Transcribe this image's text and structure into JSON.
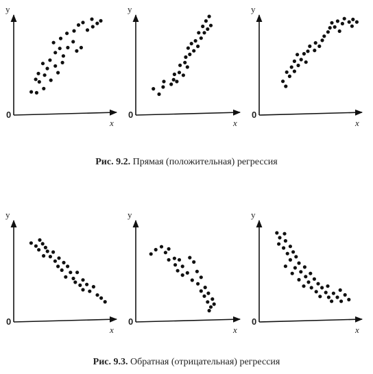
{
  "captions": {
    "top": {
      "prefix": "Рис. 9.2.",
      "text": "Прямая (положительная) регрессия"
    },
    "bottom": {
      "prefix": "Рис. 9.3.",
      "text": "Обратная (отрицательная) регрессия"
    }
  },
  "panels": [
    {
      "id": "pos-1",
      "y_label": "y",
      "x_label": "x",
      "origin_label": "0",
      "points": [
        [
          0.12,
          0.13
        ],
        [
          0.18,
          0.12
        ],
        [
          0.26,
          0.17
        ],
        [
          0.21,
          0.25
        ],
        [
          0.17,
          0.28
        ],
        [
          0.2,
          0.35
        ],
        [
          0.27,
          0.33
        ],
        [
          0.34,
          0.27
        ],
        [
          0.3,
          0.41
        ],
        [
          0.25,
          0.47
        ],
        [
          0.33,
          0.51
        ],
        [
          0.39,
          0.44
        ],
        [
          0.42,
          0.36
        ],
        [
          0.47,
          0.48
        ],
        [
          0.39,
          0.6
        ],
        [
          0.44,
          0.65
        ],
        [
          0.48,
          0.56
        ],
        [
          0.53,
          0.66
        ],
        [
          0.37,
          0.72
        ],
        [
          0.45,
          0.77
        ],
        [
          0.52,
          0.83
        ],
        [
          0.59,
          0.73
        ],
        [
          0.63,
          0.62
        ],
        [
          0.68,
          0.66
        ],
        [
          0.6,
          0.86
        ],
        [
          0.65,
          0.93
        ],
        [
          0.7,
          0.96
        ],
        [
          0.75,
          0.87
        ],
        [
          0.81,
          0.91
        ],
        [
          0.8,
          1.0
        ],
        [
          0.86,
          0.95
        ],
        [
          0.9,
          0.98
        ]
      ]
    },
    {
      "id": "pos-2",
      "y_label": "y",
      "x_label": "x",
      "origin_label": "0",
      "points": [
        [
          0.15,
          0.2
        ],
        [
          0.22,
          0.14
        ],
        [
          0.27,
          0.22
        ],
        [
          0.28,
          0.28
        ],
        [
          0.37,
          0.25
        ],
        [
          0.4,
          0.3
        ],
        [
          0.44,
          0.28
        ],
        [
          0.41,
          0.36
        ],
        [
          0.47,
          0.38
        ],
        [
          0.52,
          0.35
        ],
        [
          0.48,
          0.46
        ],
        [
          0.54,
          0.49
        ],
        [
          0.57,
          0.44
        ],
        [
          0.55,
          0.55
        ],
        [
          0.6,
          0.58
        ],
        [
          0.58,
          0.65
        ],
        [
          0.65,
          0.62
        ],
        [
          0.62,
          0.7
        ],
        [
          0.67,
          0.73
        ],
        [
          0.7,
          0.67
        ],
        [
          0.74,
          0.76
        ],
        [
          0.71,
          0.82
        ],
        [
          0.78,
          0.82
        ],
        [
          0.76,
          0.89
        ],
        [
          0.82,
          0.86
        ],
        [
          0.8,
          0.95
        ],
        [
          0.86,
          0.9
        ],
        [
          0.84,
          1.0
        ]
      ]
    },
    {
      "id": "pos-3",
      "y_label": "y",
      "x_label": "x",
      "origin_label": "0",
      "points": [
        [
          0.22,
          0.18
        ],
        [
          0.19,
          0.24
        ],
        [
          0.26,
          0.3
        ],
        [
          0.23,
          0.35
        ],
        [
          0.31,
          0.36
        ],
        [
          0.28,
          0.41
        ],
        [
          0.35,
          0.43
        ],
        [
          0.31,
          0.48
        ],
        [
          0.38,
          0.5
        ],
        [
          0.43,
          0.47
        ],
        [
          0.34,
          0.56
        ],
        [
          0.41,
          0.57
        ],
        [
          0.45,
          0.6
        ],
        [
          0.47,
          0.66
        ],
        [
          0.52,
          0.61
        ],
        [
          0.53,
          0.7
        ],
        [
          0.57,
          0.66
        ],
        [
          0.6,
          0.73
        ],
        [
          0.62,
          0.78
        ],
        [
          0.66,
          0.83
        ],
        [
          0.68,
          0.88
        ],
        [
          0.7,
          0.94
        ],
        [
          0.73,
          0.89
        ],
        [
          0.76,
          0.96
        ],
        [
          0.78,
          0.84
        ],
        [
          0.81,
          0.93
        ],
        [
          0.83,
          0.99
        ],
        [
          0.88,
          0.95
        ],
        [
          0.91,
          0.9
        ],
        [
          0.92,
          0.98
        ],
        [
          0.96,
          0.95
        ]
      ]
    },
    {
      "id": "neg-1",
      "y_label": "y",
      "x_label": "x",
      "origin_label": "0",
      "points": [
        [
          0.11,
          0.92
        ],
        [
          0.16,
          0.88
        ],
        [
          0.2,
          0.96
        ],
        [
          0.23,
          0.91
        ],
        [
          0.19,
          0.83
        ],
        [
          0.26,
          0.86
        ],
        [
          0.28,
          0.81
        ],
        [
          0.24,
          0.75
        ],
        [
          0.31,
          0.74
        ],
        [
          0.34,
          0.8
        ],
        [
          0.36,
          0.68
        ],
        [
          0.4,
          0.72
        ],
        [
          0.39,
          0.61
        ],
        [
          0.45,
          0.66
        ],
        [
          0.43,
          0.56
        ],
        [
          0.49,
          0.61
        ],
        [
          0.52,
          0.53
        ],
        [
          0.47,
          0.47
        ],
        [
          0.55,
          0.45
        ],
        [
          0.59,
          0.53
        ],
        [
          0.57,
          0.4
        ],
        [
          0.62,
          0.36
        ],
        [
          0.65,
          0.43
        ],
        [
          0.69,
          0.37
        ],
        [
          0.65,
          0.3
        ],
        [
          0.72,
          0.28
        ],
        [
          0.76,
          0.34
        ],
        [
          0.8,
          0.23
        ],
        [
          0.84,
          0.19
        ],
        [
          0.88,
          0.14
        ]
      ]
    },
    {
      "id": "neg-2",
      "y_label": "y",
      "x_label": "x",
      "origin_label": "0",
      "points": [
        [
          0.12,
          0.86
        ],
        [
          0.18,
          0.92
        ],
        [
          0.25,
          0.96
        ],
        [
          0.3,
          0.88
        ],
        [
          0.34,
          0.93
        ],
        [
          0.41,
          0.8
        ],
        [
          0.34,
          0.78
        ],
        [
          0.42,
          0.71
        ],
        [
          0.47,
          0.78
        ],
        [
          0.45,
          0.63
        ],
        [
          0.51,
          0.69
        ],
        [
          0.51,
          0.57
        ],
        [
          0.57,
          0.6
        ],
        [
          0.6,
          0.81
        ],
        [
          0.65,
          0.75
        ],
        [
          0.63,
          0.5
        ],
        [
          0.69,
          0.62
        ],
        [
          0.7,
          0.45
        ],
        [
          0.74,
          0.54
        ],
        [
          0.74,
          0.35
        ],
        [
          0.79,
          0.4
        ],
        [
          0.78,
          0.28
        ],
        [
          0.83,
          0.32
        ],
        [
          0.82,
          0.2
        ],
        [
          0.88,
          0.24
        ],
        [
          0.86,
          0.13
        ],
        [
          0.9,
          0.17
        ],
        [
          0.84,
          0.08
        ]
      ]
    },
    {
      "id": "neg-3",
      "y_label": "y",
      "x_label": "x",
      "origin_label": "0",
      "points": [
        [
          0.17,
          1.0
        ],
        [
          0.2,
          0.94
        ],
        [
          0.25,
          0.99
        ],
        [
          0.19,
          0.86
        ],
        [
          0.26,
          0.9
        ],
        [
          0.24,
          0.81
        ],
        [
          0.31,
          0.83
        ],
        [
          0.28,
          0.74
        ],
        [
          0.34,
          0.76
        ],
        [
          0.31,
          0.66
        ],
        [
          0.37,
          0.7
        ],
        [
          0.26,
          0.58
        ],
        [
          0.36,
          0.56
        ],
        [
          0.4,
          0.62
        ],
        [
          0.33,
          0.49
        ],
        [
          0.42,
          0.51
        ],
        [
          0.46,
          0.57
        ],
        [
          0.4,
          0.41
        ],
        [
          0.47,
          0.45
        ],
        [
          0.5,
          0.38
        ],
        [
          0.52,
          0.49
        ],
        [
          0.45,
          0.33
        ],
        [
          0.56,
          0.42
        ],
        [
          0.53,
          0.31
        ],
        [
          0.6,
          0.36
        ],
        [
          0.58,
          0.26
        ],
        [
          0.64,
          0.31
        ],
        [
          0.62,
          0.2
        ],
        [
          0.68,
          0.25
        ],
        [
          0.71,
          0.19
        ],
        [
          0.7,
          0.33
        ],
        [
          0.76,
          0.24
        ],
        [
          0.74,
          0.14
        ],
        [
          0.8,
          0.19
        ],
        [
          0.83,
          0.28
        ],
        [
          0.84,
          0.14
        ],
        [
          0.88,
          0.22
        ],
        [
          0.92,
          0.16
        ]
      ]
    }
  ]
}
